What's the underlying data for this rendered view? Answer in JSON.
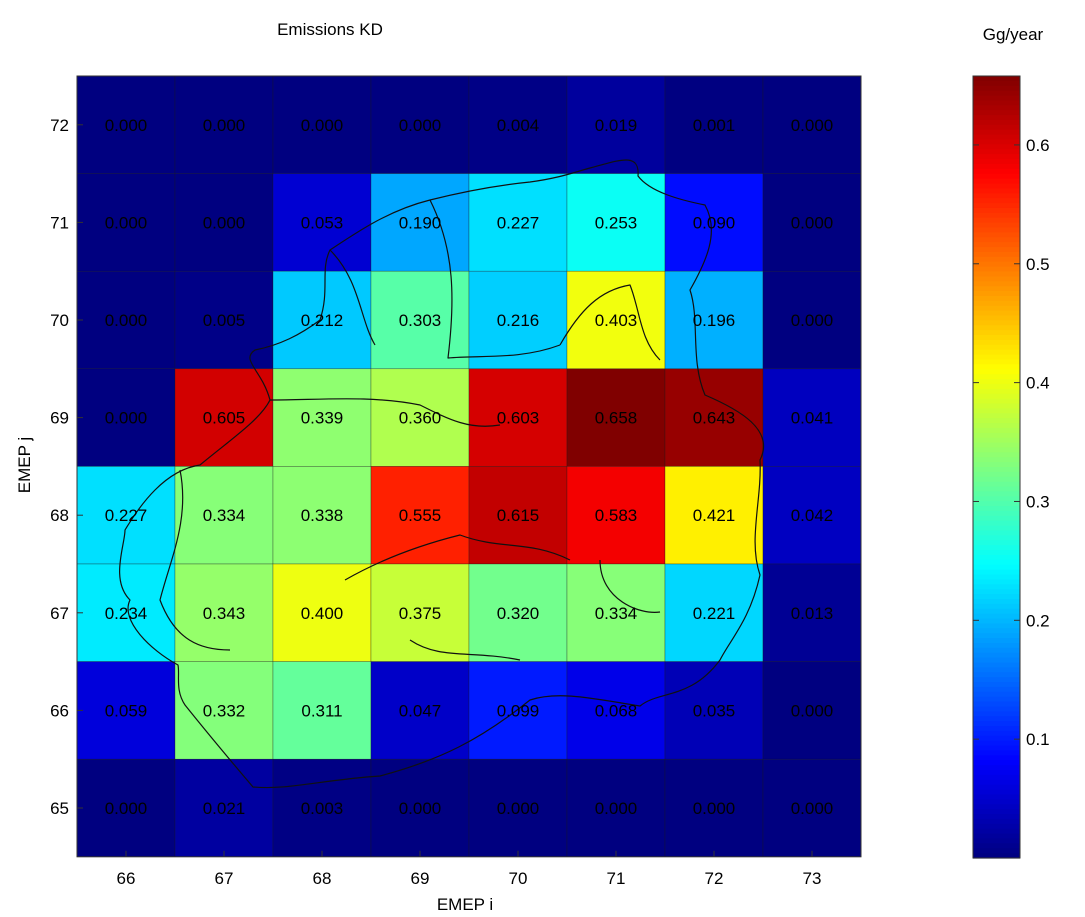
{
  "chart_data": {
    "type": "heatmap",
    "title": "Emissions KD",
    "colorbar_label": "Gg/year",
    "xlabel": "EMEP i",
    "ylabel": "EMEP j",
    "x": [
      66,
      67,
      68,
      69,
      70,
      71,
      72,
      73
    ],
    "y": [
      72,
      71,
      70,
      69,
      68,
      67,
      66,
      65
    ],
    "values": [
      [
        "0.000",
        "0.000",
        "0.000",
        "0.000",
        "0.004",
        "0.019",
        "0.001",
        "0.000"
      ],
      [
        "0.000",
        "0.000",
        "0.053",
        "0.190",
        "0.227",
        "0.253",
        "0.090",
        "0.000"
      ],
      [
        "0.000",
        "0.005",
        "0.212",
        "0.303",
        "0.216",
        "0.403",
        "0.196",
        "0.000"
      ],
      [
        "0.000",
        "0.605",
        "0.339",
        "0.360",
        "0.603",
        "0.658",
        "0.643",
        "0.041"
      ],
      [
        "0.227",
        "0.334",
        "0.338",
        "0.555",
        "0.615",
        "0.583",
        "0.421",
        "0.042"
      ],
      [
        "0.234",
        "0.343",
        "0.400",
        "0.375",
        "0.320",
        "0.334",
        "0.221",
        "0.013"
      ],
      [
        "0.059",
        "0.332",
        "0.311",
        "0.047",
        "0.099",
        "0.068",
        "0.035",
        "0.000"
      ],
      [
        "0.000",
        "0.021",
        "0.003",
        "0.000",
        "0.000",
        "0.000",
        "0.000",
        "0.000"
      ]
    ],
    "color_range": [
      0,
      0.658
    ],
    "colormap": "jet",
    "colorbar_ticks": [
      "0.1",
      "0.2",
      "0.3",
      "0.4",
      "0.5",
      "0.6"
    ],
    "grid": true,
    "overlay": "region boundary outlines"
  }
}
